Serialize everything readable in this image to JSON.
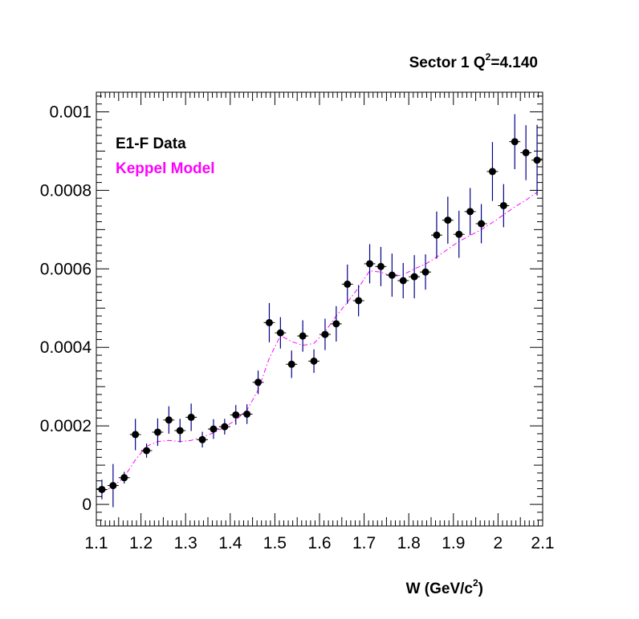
{
  "chart_data": {
    "type": "scatter",
    "title": "Sector 1 Q",
    "title_superscript": "2",
    "title_suffix": "=4.140",
    "xlabel": "W (GeV/c",
    "xlabel_superscript": "2",
    "xlabel_suffix": ")",
    "ylabel": "",
    "xlim": [
      1.1,
      2.1
    ],
    "ylim": [
      -5.5e-05,
      0.00105
    ],
    "x_ticks": [
      1.1,
      1.2,
      1.3,
      1.4,
      1.5,
      1.6,
      1.7,
      1.8,
      1.9,
      2.0,
      2.1
    ],
    "x_tick_labels": [
      "1.1",
      "1.2",
      "1.3",
      "1.4",
      "1.5",
      "1.6",
      "1.7",
      "1.8",
      "1.9",
      "2",
      "2.1"
    ],
    "y_ticks": [
      0,
      0.0002,
      0.0004,
      0.0006,
      0.0008,
      0.001
    ],
    "y_tick_labels": [
      "0",
      "0.0002",
      "0.0004",
      "0.0006",
      "0.0008",
      "0.001"
    ],
    "grid": false,
    "legend_position": "top-left",
    "series": [
      {
        "name": "E1-F Data",
        "color": "#000000",
        "error_color": "#00008b",
        "x": [
          1.1125,
          1.1375,
          1.1625,
          1.1875,
          1.2125,
          1.2375,
          1.2625,
          1.2875,
          1.3125,
          1.3375,
          1.3625,
          1.3875,
          1.4125,
          1.4375,
          1.4625,
          1.4875,
          1.5125,
          1.5375,
          1.5625,
          1.5875,
          1.6125,
          1.6375,
          1.6625,
          1.6875,
          1.7125,
          1.7375,
          1.7625,
          1.7875,
          1.8125,
          1.8375,
          1.8625,
          1.8875,
          1.9125,
          1.9375,
          1.9625,
          1.9875,
          2.0125,
          2.0375,
          2.0625,
          2.0875
        ],
        "y": [
          3.8e-05,
          4.8e-05,
          6.8e-05,
          0.000178,
          0.000137,
          0.000184,
          0.000215,
          0.000188,
          0.000222,
          0.000165,
          0.000192,
          0.000198,
          0.000228,
          0.00023,
          0.000311,
          0.000463,
          0.000437,
          0.000357,
          0.000429,
          0.000365,
          0.000433,
          0.00046,
          0.000561,
          0.000519,
          0.000613,
          0.000606,
          0.000584,
          0.00057,
          0.00058,
          0.000592,
          0.000686,
          0.000724,
          0.000688,
          0.000746,
          0.000715,
          0.000848,
          0.000761,
          0.000924,
          0.000896,
          0.000877
        ],
        "yerr": [
          2.5e-05,
          5.5e-05,
          1.5e-05,
          4e-05,
          1.8e-05,
          3.5e-05,
          3.5e-05,
          3e-05,
          3.5e-05,
          2e-05,
          2.5e-05,
          2e-05,
          2.5e-05,
          2.5e-05,
          3e-05,
          5e-05,
          4e-05,
          3.5e-05,
          4e-05,
          3e-05,
          4e-05,
          4.5e-05,
          5e-05,
          4e-05,
          5e-05,
          5e-05,
          5.5e-05,
          4.5e-05,
          5.5e-05,
          4.5e-05,
          6e-05,
          6e-05,
          6e-05,
          6e-05,
          5e-05,
          7.5e-05,
          5.5e-05,
          7e-05,
          7e-05,
          9e-05
        ]
      },
      {
        "name": "Keppel Model",
        "color": "#ff00ff",
        "style": "dash-dot",
        "x": [
          1.1125,
          1.1375,
          1.1625,
          1.1875,
          1.2125,
          1.2375,
          1.2625,
          1.2875,
          1.3125,
          1.3375,
          1.3625,
          1.3875,
          1.4125,
          1.4375,
          1.4625,
          1.4875,
          1.5125,
          1.5375,
          1.5625,
          1.5875,
          1.6125,
          1.6375,
          1.6625,
          1.6875,
          1.7125,
          1.7375,
          1.7625,
          1.7875,
          1.8125,
          1.8375,
          1.8625,
          1.8875,
          1.9125,
          1.9375,
          1.9625,
          1.9875,
          2.0125,
          2.0375,
          2.0625,
          2.0875
        ],
        "y": [
          3.2e-05,
          4.5e-05,
          7e-05,
          0.000113,
          0.000148,
          0.00016,
          0.000163,
          0.00016,
          0.000163,
          0.000172,
          0.000182,
          0.000197,
          0.000215,
          0.00024,
          0.000291,
          0.000372,
          0.00043,
          0.000415,
          0.000405,
          0.00041,
          0.00044,
          0.00048,
          0.000515,
          0.000552,
          0.000595,
          0.000592,
          0.00058,
          0.000585,
          0.0006,
          0.000612,
          0.00063,
          0.00065,
          0.00067,
          0.000685,
          0.0007,
          0.000718,
          0.000738,
          0.000758,
          0.000775,
          0.000795
        ]
      }
    ]
  }
}
